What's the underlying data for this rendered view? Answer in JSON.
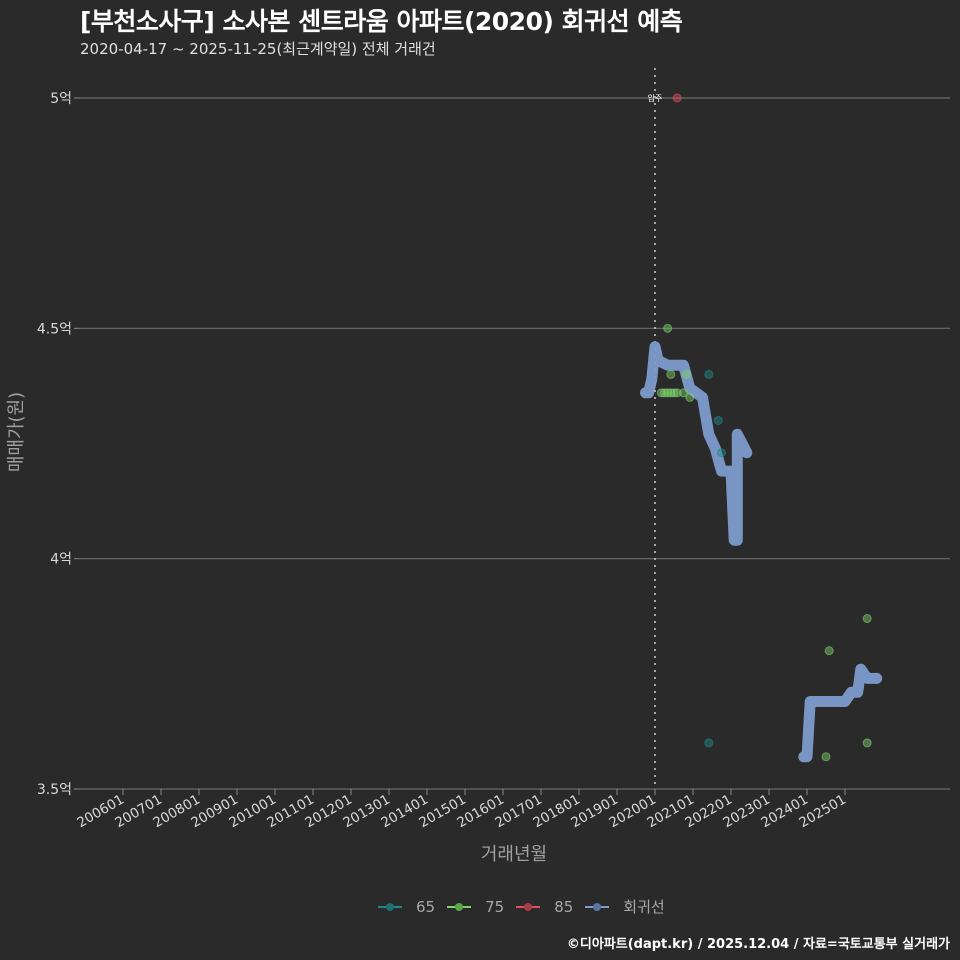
{
  "header": {
    "title": "[부천소사구] 소사본 센트라움 아파트(2020) 회귀선 예측",
    "subtitle": "2020-04-17 ~ 2025-11-25(최근계약일) 전체 거래건"
  },
  "caption": "©디아파트(dapt.kr) / 2025.12.04 / 자료=국토교통부 실거래가",
  "annotation": {
    "label": "입주",
    "x": "202001"
  },
  "legend": {
    "items": [
      {
        "label": "65",
        "color": "#1f8a8a"
      },
      {
        "label": "75",
        "color": "#7fd16b"
      },
      {
        "label": "85",
        "color": "#e0505f"
      },
      {
        "label": "회귀선",
        "color": "#7d9bcc"
      }
    ]
  },
  "chart_data": {
    "type": "scatter",
    "title": "[부천소사구] 소사본 센트라움 아파트(2020) 회귀선 예측",
    "subtitle": "2020-04-17 ~ 2025-11-25(최근계약일) 전체 거래건",
    "xlabel": "거래년월",
    "ylabel": "매매가(원)",
    "x_ticks": [
      "200601",
      "200701",
      "200801",
      "200901",
      "201001",
      "201101",
      "201201",
      "201301",
      "201401",
      "201501",
      "201601",
      "201701",
      "201801",
      "201901",
      "202001",
      "202101",
      "202201",
      "202301",
      "202401",
      "202501"
    ],
    "y_ticks": [
      "3.5억",
      "4억",
      "4.5억",
      "5억"
    ],
    "ylim": [
      3.5,
      5.05
    ],
    "y_unit": "억",
    "grid": true,
    "legend_position": "bottom",
    "vline": {
      "x": "202001",
      "label": "입주",
      "style": "dotted"
    },
    "series": [
      {
        "name": "65",
        "color": "#1f8a8a",
        "points": [
          {
            "x": "202106",
            "y": 4.4
          },
          {
            "x": "202109",
            "y": 4.3
          },
          {
            "x": "202110",
            "y": 4.23
          },
          {
            "x": "202106",
            "y": 3.6
          }
        ]
      },
      {
        "name": "75",
        "color": "#7fd16b",
        "points": [
          {
            "x": "202005",
            "y": 4.5
          },
          {
            "x": "202006",
            "y": 4.4
          },
          {
            "x": "202011",
            "y": 4.4
          },
          {
            "x": "202003",
            "y": 4.36
          },
          {
            "x": "202004",
            "y": 4.36
          },
          {
            "x": "202005",
            "y": 4.36
          },
          {
            "x": "202006",
            "y": 4.36
          },
          {
            "x": "202007",
            "y": 4.36
          },
          {
            "x": "202008",
            "y": 4.36
          },
          {
            "x": "202010",
            "y": 4.36
          },
          {
            "x": "202012",
            "y": 4.35
          },
          {
            "x": "202407",
            "y": 3.57
          },
          {
            "x": "202408",
            "y": 3.8
          },
          {
            "x": "202508",
            "y": 3.87
          },
          {
            "x": "202508",
            "y": 3.6
          }
        ]
      },
      {
        "name": "85",
        "color": "#e0505f",
        "points": [
          {
            "x": "202008",
            "y": 5.0
          }
        ]
      },
      {
        "name": "회귀선",
        "color": "#7d9bcc",
        "type": "line",
        "points": [
          {
            "x": "201910",
            "y": 4.36
          },
          {
            "x": "201911",
            "y": 4.36
          },
          {
            "x": "201912",
            "y": 4.39
          },
          {
            "x": "202001",
            "y": 4.46
          },
          {
            "x": "202002",
            "y": 4.43
          },
          {
            "x": "202005",
            "y": 4.42
          },
          {
            "x": "202010",
            "y": 4.42
          },
          {
            "x": "202012",
            "y": 4.37
          },
          {
            "x": "202104",
            "y": 4.35
          },
          {
            "x": "202106",
            "y": 4.27
          },
          {
            "x": "202108",
            "y": 4.24
          },
          {
            "x": "202110",
            "y": 4.19
          },
          {
            "x": "202201",
            "y": 4.19
          },
          {
            "x": "202202",
            "y": 4.04
          },
          {
            "x": "202203",
            "y": 4.04
          },
          {
            "x": "202203",
            "y": 4.27
          },
          {
            "x": "202206",
            "y": 4.23
          },
          {
            "x": "202312",
            "y": 3.57
          },
          {
            "x": "202401",
            "y": 3.57
          },
          {
            "x": "202402",
            "y": 3.69
          },
          {
            "x": "202501",
            "y": 3.69
          },
          {
            "x": "202503",
            "y": 3.71
          },
          {
            "x": "202505",
            "y": 3.71
          },
          {
            "x": "202506",
            "y": 3.76
          },
          {
            "x": "202508",
            "y": 3.74
          },
          {
            "x": "202511",
            "y": 3.74
          }
        ]
      }
    ]
  }
}
